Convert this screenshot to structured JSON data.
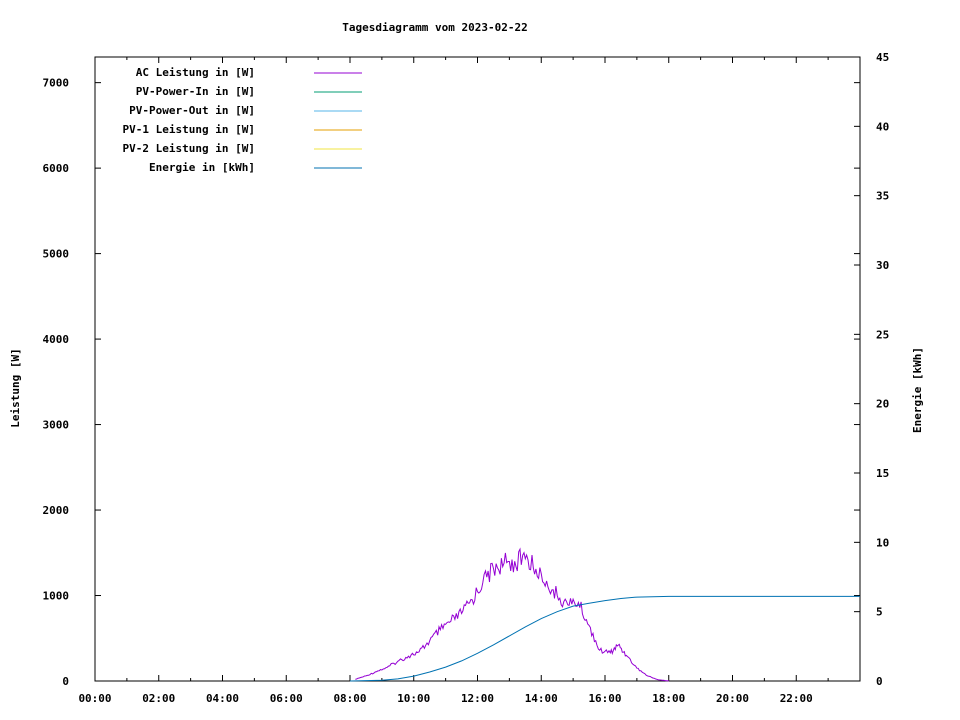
{
  "chart_data": {
    "type": "line",
    "title": "Tagesdiagramm vom 2023-02-22",
    "xlabel": "",
    "ylabel": "Leistung [W]",
    "y2label": "Energie [kWh]",
    "xlim": [
      "00:00",
      "24:00"
    ],
    "ylim": [
      0,
      7300
    ],
    "y2lim": [
      0,
      45
    ],
    "x_ticks": [
      "00:00",
      "02:00",
      "04:00",
      "06:00",
      "08:00",
      "10:00",
      "12:00",
      "14:00",
      "16:00",
      "18:00",
      "20:00",
      "22:00"
    ],
    "y_ticks": [
      "0",
      "1000",
      "2000",
      "3000",
      "4000",
      "5000",
      "6000",
      "7000"
    ],
    "y2_ticks": [
      "0",
      "5",
      "10",
      "15",
      "20",
      "25",
      "30",
      "35",
      "40",
      "45"
    ],
    "legend_position": "top-left",
    "grid": false,
    "series": [
      {
        "name": "AC Leistung in [W]",
        "color": "#9400d3",
        "axis": "left",
        "x": [
          "08:10",
          "08:30",
          "08:50",
          "09:10",
          "09:30",
          "09:50",
          "10:10",
          "10:30",
          "10:50",
          "11:10",
          "11:30",
          "11:50",
          "12:10",
          "12:30",
          "12:50",
          "13:10",
          "13:30",
          "13:50",
          "14:10",
          "14:30",
          "14:50",
          "15:10",
          "15:30",
          "15:50",
          "16:10",
          "16:25",
          "16:40",
          "17:00",
          "17:20",
          "17:40",
          "18:00"
        ],
        "values": [
          20,
          60,
          110,
          160,
          230,
          290,
          340,
          470,
          600,
          700,
          790,
          950,
          1150,
          1320,
          1380,
          1400,
          1430,
          1310,
          1170,
          1000,
          890,
          920,
          650,
          360,
          330,
          420,
          300,
          150,
          60,
          15,
          0
        ]
      },
      {
        "name": "PV-Power-In in [W]",
        "color": "#009e73",
        "axis": "left",
        "x": [],
        "values": []
      },
      {
        "name": "PV-Power-Out in [W]",
        "color": "#56b4e9",
        "axis": "left",
        "x": [],
        "values": []
      },
      {
        "name": "PV-1 Leistung in [W]",
        "color": "#e69f00",
        "axis": "left",
        "x": [],
        "values": []
      },
      {
        "name": "PV-2 Leistung in [W]",
        "color": "#f0e442",
        "axis": "left",
        "x": [],
        "values": []
      },
      {
        "name": "Energie in [kWh]",
        "color": "#0072b2",
        "axis": "right",
        "x": [
          "08:00",
          "09:00",
          "09:30",
          "10:00",
          "10:30",
          "11:00",
          "11:30",
          "12:00",
          "12:30",
          "13:00",
          "13:30",
          "14:00",
          "14:30",
          "15:00",
          "15:30",
          "16:00",
          "16:30",
          "17:00",
          "17:30",
          "18:00",
          "20:00",
          "22:00",
          "24:00"
        ],
        "values": [
          0,
          0.05,
          0.15,
          0.35,
          0.65,
          1.0,
          1.45,
          2.0,
          2.6,
          3.25,
          3.9,
          4.5,
          5.0,
          5.4,
          5.6,
          5.8,
          5.95,
          6.05,
          6.08,
          6.1,
          6.1,
          6.1,
          6.1
        ]
      }
    ]
  }
}
